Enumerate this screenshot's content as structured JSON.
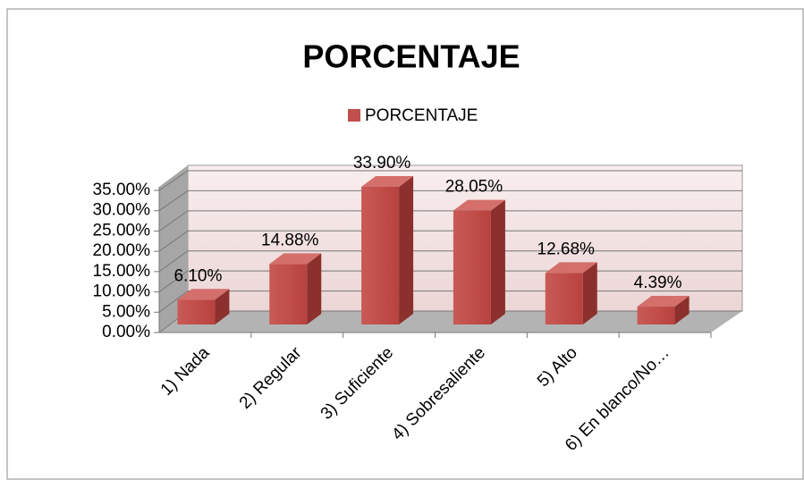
{
  "chart_data": {
    "type": "bar3d",
    "title": "PORCENTAJE",
    "categories": [
      "1) Nada",
      "2) Regular",
      "3) Suficiente",
      "4) Sobresaliente",
      "5) Alto",
      "6) En blanco/No…"
    ],
    "series": [
      {
        "name": "PORCENTAJE",
        "color": "#c0504d",
        "values": [
          6.1,
          14.88,
          33.9,
          28.05,
          12.68,
          4.39
        ],
        "value_labels": [
          "6.10%",
          "14.88%",
          "33.90%",
          "28.05%",
          "12.68%",
          "4.39%"
        ]
      }
    ],
    "ylim": [
      0,
      35
    ],
    "yticks": [
      {
        "value": 0,
        "label": "0.00%"
      },
      {
        "value": 5,
        "label": "5.00%"
      },
      {
        "value": 10,
        "label": "10.00%"
      },
      {
        "value": 15,
        "label": "15.00%"
      },
      {
        "value": 20,
        "label": "20.00%"
      },
      {
        "value": 25,
        "label": "25.00%"
      },
      {
        "value": 30,
        "label": "30.00%"
      },
      {
        "value": 35,
        "label": "35.00%"
      }
    ],
    "grid": true,
    "legend": "top"
  }
}
